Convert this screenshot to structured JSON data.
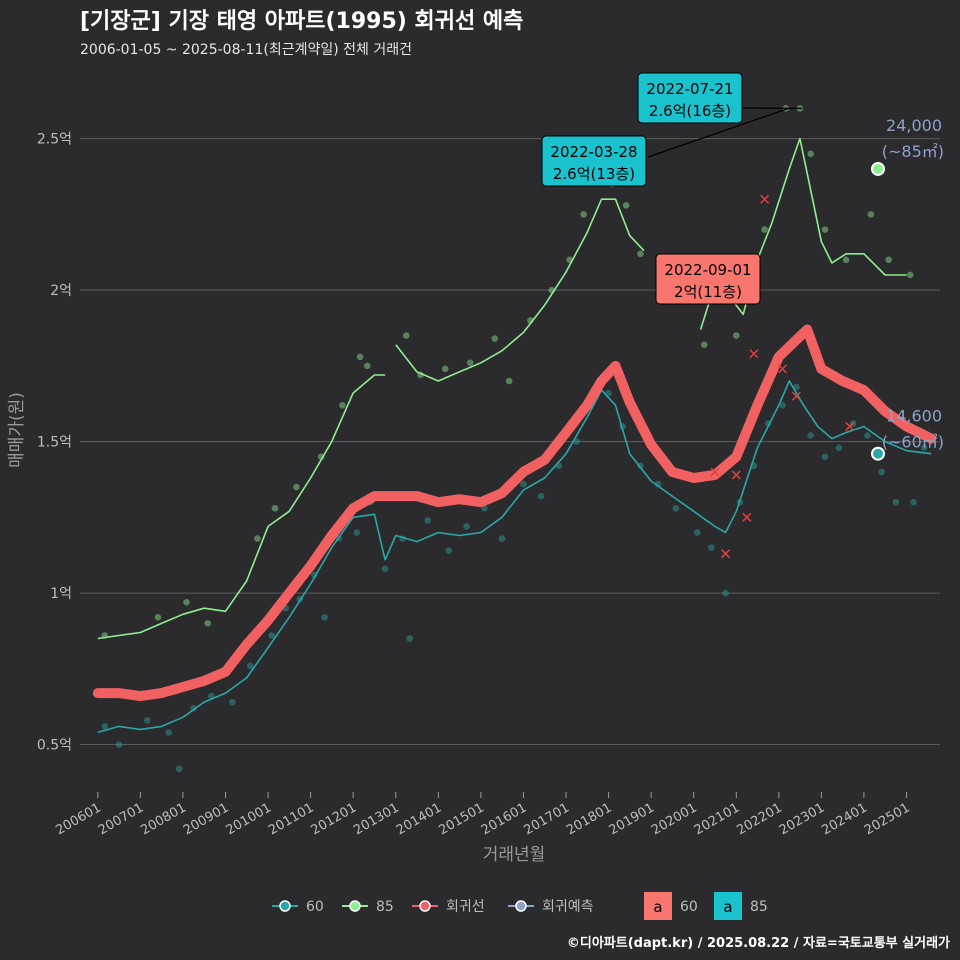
{
  "header": {
    "title": "[기장군] 기장 태영 아파트(1995) 회귀선 예측",
    "subtitle": "2006-01-05 ~ 2025-08-11(최근계약일) 전체 거래건"
  },
  "footer": {
    "credit": "©디아파트(dapt.kr) / 2025.08.22 / 자료=국토교통부 실거래가"
  },
  "colors": {
    "background": "#2b2b2d",
    "grid": "#5c5c5c",
    "s60": "#2aa7a7",
    "s85": "#90ee90",
    "regression": "#f26161",
    "forecast": "#8da2c8",
    "label_60_bg": "#19c2cd",
    "label_regression_bg": "#f8766d",
    "text_muted": "#bdbdbd"
  },
  "chart_data": {
    "type": "line",
    "title": "[기장군] 기장 태영 아파트(1995) 회귀선 예측",
    "xlabel": "거래년월",
    "ylabel": "매매가(원)",
    "ylim": [
      0.35,
      2.72
    ],
    "y_unit": "억",
    "x_date_range": [
      "2005-08-01",
      "2025-10-15"
    ],
    "yticks": [
      {
        "value": 0.5,
        "label": "0.5억"
      },
      {
        "value": 1.0,
        "label": "1억"
      },
      {
        "value": 1.5,
        "label": "1.5억"
      },
      {
        "value": 2.0,
        "label": "2억"
      },
      {
        "value": 2.5,
        "label": "2.5억"
      }
    ],
    "xticks": [
      {
        "date": "2006-01-01",
        "label": "200601"
      },
      {
        "date": "2007-01-01",
        "label": "200701"
      },
      {
        "date": "2008-01-01",
        "label": "200801"
      },
      {
        "date": "2009-01-01",
        "label": "200901"
      },
      {
        "date": "2010-01-01",
        "label": "201001"
      },
      {
        "date": "2011-01-01",
        "label": "201101"
      },
      {
        "date": "2012-01-01",
        "label": "201201"
      },
      {
        "date": "2013-01-01",
        "label": "201301"
      },
      {
        "date": "2014-01-01",
        "label": "201401"
      },
      {
        "date": "2015-01-01",
        "label": "201501"
      },
      {
        "date": "2016-01-01",
        "label": "201601"
      },
      {
        "date": "2017-01-01",
        "label": "201701"
      },
      {
        "date": "2018-01-01",
        "label": "201801"
      },
      {
        "date": "2019-01-01",
        "label": "201901"
      },
      {
        "date": "2020-01-01",
        "label": "202001"
      },
      {
        "date": "2021-01-01",
        "label": "202101"
      },
      {
        "date": "2022-01-01",
        "label": "202201"
      },
      {
        "date": "2023-01-01",
        "label": "202301"
      },
      {
        "date": "2024-01-01",
        "label": "202401"
      },
      {
        "date": "2025-01-01",
        "label": "202501"
      }
    ],
    "series": [
      {
        "name": "60",
        "key": "s60",
        "points": [
          [
            "2006-01-01",
            0.54
          ],
          [
            "2006-07-01",
            0.56
          ],
          [
            "2007-01-01",
            0.55
          ],
          [
            "2007-07-01",
            0.56
          ],
          [
            "2008-01-01",
            0.59
          ],
          [
            "2008-07-01",
            0.64
          ],
          [
            "2009-01-01",
            0.67
          ],
          [
            "2009-07-01",
            0.72
          ],
          [
            "2010-01-01",
            0.82
          ],
          [
            "2010-07-01",
            0.92
          ],
          [
            "2011-01-01",
            1.03
          ],
          [
            "2011-07-01",
            1.15
          ],
          [
            "2012-01-01",
            1.25
          ],
          [
            "2012-07-01",
            1.26
          ],
          [
            "2012-10-01",
            1.11
          ],
          [
            "2013-01-01",
            1.19
          ],
          [
            "2013-07-01",
            1.17
          ],
          [
            "2014-01-01",
            1.2
          ],
          [
            "2014-07-01",
            1.19
          ],
          [
            "2015-01-01",
            1.2
          ],
          [
            "2015-07-01",
            1.25
          ],
          [
            "2016-01-01",
            1.34
          ],
          [
            "2016-07-01",
            1.38
          ],
          [
            "2017-01-01",
            1.46
          ],
          [
            "2017-07-01",
            1.58
          ],
          [
            "2017-11-01",
            1.67
          ],
          [
            "2018-03-01",
            1.62
          ],
          [
            "2018-07-01",
            1.46
          ],
          [
            "2019-01-01",
            1.37
          ],
          [
            "2019-07-01",
            1.32
          ],
          [
            "2020-01-01",
            1.27
          ],
          [
            "2020-07-01",
            1.22
          ],
          [
            "2020-10-01",
            1.2
          ],
          [
            "2021-01-01",
            1.27
          ],
          [
            "2021-07-01",
            1.48
          ],
          [
            "2022-01-01",
            1.62
          ],
          [
            "2022-04-01",
            1.7
          ],
          [
            "2022-08-01",
            1.62
          ],
          [
            "2022-12-01",
            1.55
          ],
          [
            "2023-04-01",
            1.51
          ],
          [
            "2023-08-01",
            1.53
          ],
          [
            "2024-01-01",
            1.55
          ],
          [
            "2024-07-01",
            1.5
          ],
          [
            "2025-01-01",
            1.47
          ],
          [
            "2025-08-01",
            1.46
          ]
        ]
      },
      {
        "name": "85",
        "key": "s85",
        "points": [
          [
            "2006-01-01",
            0.85
          ],
          [
            "2006-07-01",
            0.86
          ],
          [
            "2007-01-01",
            0.87
          ],
          [
            "2007-07-01",
            0.9
          ],
          [
            "2008-01-01",
            0.93
          ],
          [
            "2008-07-01",
            0.95
          ],
          [
            "2009-01-01",
            0.94
          ],
          [
            "2009-07-01",
            1.04
          ],
          [
            "2010-01-01",
            1.22
          ],
          [
            "2010-07-01",
            1.27
          ],
          [
            "2011-01-01",
            1.38
          ],
          [
            "2011-07-01",
            1.5
          ],
          [
            "2012-01-01",
            1.66
          ],
          [
            "2012-07-01",
            1.72
          ],
          [
            "2012-10-01",
            1.72
          ],
          null,
          [
            "2013-01-01",
            1.82
          ],
          [
            "2013-07-01",
            1.73
          ],
          [
            "2014-01-01",
            1.7
          ],
          [
            "2014-07-01",
            1.73
          ],
          [
            "2015-01-01",
            1.76
          ],
          [
            "2015-07-01",
            1.8
          ],
          [
            "2016-01-01",
            1.86
          ],
          [
            "2016-07-01",
            1.95
          ],
          [
            "2017-01-01",
            2.06
          ],
          [
            "2017-07-01",
            2.19
          ],
          [
            "2017-11-01",
            2.3
          ],
          [
            "2018-03-01",
            2.3
          ],
          [
            "2018-07-01",
            2.18
          ],
          [
            "2018-11-01",
            2.13
          ],
          null,
          [
            "2020-03-01",
            1.87
          ],
          [
            "2020-07-01",
            2.02
          ],
          [
            "2020-11-01",
            1.98
          ],
          [
            "2021-03-01",
            1.92
          ],
          [
            "2021-07-01",
            2.1
          ],
          [
            "2021-11-01",
            2.22
          ],
          [
            "2022-04-01",
            2.4
          ],
          [
            "2022-07-01",
            2.5
          ],
          [
            "2022-10-01",
            2.33
          ],
          [
            "2023-01-01",
            2.16
          ],
          [
            "2023-04-01",
            2.09
          ],
          [
            "2023-08-01",
            2.12
          ],
          [
            "2024-01-01",
            2.12
          ],
          [
            "2024-07-01",
            2.05
          ],
          [
            "2025-01-01",
            2.05
          ]
        ]
      },
      {
        "name": "회귀선",
        "key": "regression",
        "points": [
          [
            "2006-01-01",
            0.67
          ],
          [
            "2006-07-01",
            0.67
          ],
          [
            "2007-01-01",
            0.66
          ],
          [
            "2007-07-01",
            0.67
          ],
          [
            "2008-01-01",
            0.69
          ],
          [
            "2008-07-01",
            0.71
          ],
          [
            "2009-01-01",
            0.74
          ],
          [
            "2009-07-01",
            0.83
          ],
          [
            "2010-01-01",
            0.91
          ],
          [
            "2010-07-01",
            1.0
          ],
          [
            "2011-01-01",
            1.09
          ],
          [
            "2011-07-01",
            1.19
          ],
          [
            "2012-01-01",
            1.28
          ],
          [
            "2012-07-01",
            1.32
          ],
          [
            "2013-01-01",
            1.32
          ],
          [
            "2013-07-01",
            1.32
          ],
          [
            "2014-01-01",
            1.3
          ],
          [
            "2014-07-01",
            1.31
          ],
          [
            "2015-01-01",
            1.3
          ],
          [
            "2015-07-01",
            1.33
          ],
          [
            "2016-01-01",
            1.4
          ],
          [
            "2016-07-01",
            1.44
          ],
          [
            "2017-01-01",
            1.53
          ],
          [
            "2017-07-01",
            1.62
          ],
          [
            "2017-11-01",
            1.7
          ],
          [
            "2018-03-01",
            1.75
          ],
          [
            "2018-07-01",
            1.63
          ],
          [
            "2019-01-01",
            1.49
          ],
          [
            "2019-07-01",
            1.4
          ],
          [
            "2020-01-01",
            1.38
          ],
          [
            "2020-07-01",
            1.39
          ],
          [
            "2021-01-01",
            1.45
          ],
          [
            "2021-07-01",
            1.62
          ],
          [
            "2022-01-01",
            1.78
          ],
          [
            "2022-09-01",
            1.87
          ],
          [
            "2023-01-01",
            1.74
          ],
          [
            "2023-07-01",
            1.7
          ],
          [
            "2024-01-01",
            1.67
          ],
          [
            "2024-07-01",
            1.6
          ],
          [
            "2025-01-01",
            1.55
          ],
          [
            "2025-08-01",
            1.51
          ]
        ]
      },
      {
        "name": "회귀예측",
        "key": "forecast",
        "points": []
      }
    ],
    "scatter": {
      "s60": [
        [
          "2006-03-01",
          0.56
        ],
        [
          "2006-07-01",
          0.5
        ],
        [
          "2007-03-01",
          0.58
        ],
        [
          "2007-09-01",
          0.54
        ],
        [
          "2007-12-01",
          0.42
        ],
        [
          "2008-04-01",
          0.62
        ],
        [
          "2008-09-01",
          0.66
        ],
        [
          "2009-03-01",
          0.64
        ],
        [
          "2009-08-01",
          0.76
        ],
        [
          "2010-02-01",
          0.86
        ],
        [
          "2010-06-01",
          0.95
        ],
        [
          "2010-10-01",
          0.98
        ],
        [
          "2011-02-01",
          1.06
        ],
        [
          "2011-05-01",
          0.92
        ],
        [
          "2011-09-01",
          1.18
        ],
        [
          "2012-02-01",
          1.2
        ],
        [
          "2012-06-01",
          1.3
        ],
        [
          "2012-10-01",
          1.08
        ],
        [
          "2013-03-01",
          1.18
        ],
        [
          "2013-05-01",
          0.85
        ],
        [
          "2013-10-01",
          1.24
        ],
        [
          "2014-04-01",
          1.14
        ],
        [
          "2014-09-01",
          1.22
        ],
        [
          "2015-02-01",
          1.28
        ],
        [
          "2015-07-01",
          1.18
        ],
        [
          "2016-01-01",
          1.36
        ],
        [
          "2016-06-01",
          1.32
        ],
        [
          "2016-11-01",
          1.42
        ],
        [
          "2017-04-01",
          1.5
        ],
        [
          "2017-08-01",
          1.62
        ],
        [
          "2018-01-01",
          1.66
        ],
        [
          "2018-05-01",
          1.55
        ],
        [
          "2018-10-01",
          1.42
        ],
        [
          "2019-03-01",
          1.36
        ],
        [
          "2019-08-01",
          1.28
        ],
        [
          "2020-02-01",
          1.2
        ],
        [
          "2020-06-01",
          1.15
        ],
        [
          "2020-10-01",
          1.0
        ],
        [
          "2021-02-01",
          1.3
        ],
        [
          "2021-06-01",
          1.42
        ],
        [
          "2021-10-01",
          1.56
        ],
        [
          "2022-02-01",
          1.62
        ],
        [
          "2022-06-01",
          1.68
        ],
        [
          "2022-10-01",
          1.52
        ],
        [
          "2023-02-01",
          1.45
        ],
        [
          "2023-06-01",
          1.48
        ],
        [
          "2023-10-01",
          1.56
        ],
        [
          "2024-02-01",
          1.52
        ],
        [
          "2024-06-01",
          1.4
        ],
        [
          "2024-10-01",
          1.3
        ],
        [
          "2025-03-01",
          1.3
        ],
        [
          "2025-06-01",
          1.48
        ]
      ],
      "s85": [
        [
          "2006-03-01",
          0.86
        ],
        [
          "2007-06-01",
          0.92
        ],
        [
          "2008-02-01",
          0.97
        ],
        [
          "2008-08-01",
          0.9
        ],
        [
          "2009-10-01",
          1.18
        ],
        [
          "2010-03-01",
          1.28
        ],
        [
          "2010-09-01",
          1.35
        ],
        [
          "2011-04-01",
          1.45
        ],
        [
          "2011-10-01",
          1.62
        ],
        [
          "2012-03-01",
          1.78
        ],
        [
          "2012-05-01",
          1.75
        ],
        [
          "2013-04-01",
          1.85
        ],
        [
          "2013-08-01",
          1.72
        ],
        [
          "2014-03-01",
          1.74
        ],
        [
          "2014-10-01",
          1.76
        ],
        [
          "2015-05-01",
          1.84
        ],
        [
          "2015-09-01",
          1.7
        ],
        [
          "2016-03-01",
          1.9
        ],
        [
          "2016-09-01",
          2.0
        ],
        [
          "2017-02-01",
          2.1
        ],
        [
          "2017-06-01",
          2.25
        ],
        [
          "2017-10-01",
          2.4
        ],
        [
          "2018-02-01",
          2.35
        ],
        [
          "2018-06-01",
          2.28
        ],
        [
          "2018-10-01",
          2.12
        ],
        [
          "2020-04-01",
          1.82
        ],
        [
          "2020-09-01",
          2.05
        ],
        [
          "2021-01-01",
          1.85
        ],
        [
          "2021-05-01",
          2.05
        ],
        [
          "2021-09-01",
          2.2
        ],
        [
          "2022-03-01",
          2.6
        ],
        [
          "2022-07-01",
          2.6
        ],
        [
          "2022-10-01",
          2.45
        ],
        [
          "2023-02-01",
          2.2
        ],
        [
          "2023-08-01",
          2.1
        ],
        [
          "2024-03-01",
          2.25
        ],
        [
          "2024-08-01",
          2.1
        ],
        [
          "2025-02-01",
          2.05
        ]
      ]
    },
    "regression_marks": [
      [
        "2020-07-01",
        1.4
      ],
      [
        "2020-10-01",
        1.13
      ],
      [
        "2021-01-01",
        1.39
      ],
      [
        "2021-04-01",
        1.25
      ],
      [
        "2021-06-01",
        1.79
      ],
      [
        "2021-09-01",
        2.3
      ],
      [
        "2022-02-01",
        1.74
      ],
      [
        "2022-06-01",
        1.65
      ],
      [
        "2023-09-01",
        1.55
      ]
    ],
    "callouts": [
      {
        "date": "2022-03-28",
        "value": 2.6,
        "line1": "2022-03-28",
        "line2": "2.6억(13층)",
        "style": "label_60_bg"
      },
      {
        "date": "2022-07-21",
        "value": 2.6,
        "line1": "2022-07-21",
        "line2": "2.6억(16층)",
        "style": "label_60_bg"
      },
      {
        "date": "2022-09-01",
        "value": 1.87,
        "line1": "2022-09-01",
        "line2": "2억(11층)",
        "style": "label_regression_bg"
      }
    ],
    "end_labels": [
      {
        "series": "85",
        "date": "2025-08-01",
        "value": 2.4,
        "line1": "24,000",
        "line2": "(~85㎡)"
      },
      {
        "series": "60",
        "date": "2025-08-01",
        "value": 1.46,
        "line1": "14,600",
        "line2": "(~60㎡)"
      }
    ],
    "legend": {
      "position": "bottom",
      "items": [
        {
          "label": "60",
          "key": "s60"
        },
        {
          "label": "85",
          "key": "s85"
        },
        {
          "label": "회귀선",
          "key": "regression"
        },
        {
          "label": "회귀예측",
          "key": "forecast"
        }
      ],
      "label_boxes": [
        {
          "glyph": "a",
          "label": "60",
          "style": "label_regression_bg"
        },
        {
          "glyph": "a",
          "label": "85",
          "style": "label_60_bg"
        }
      ]
    }
  }
}
